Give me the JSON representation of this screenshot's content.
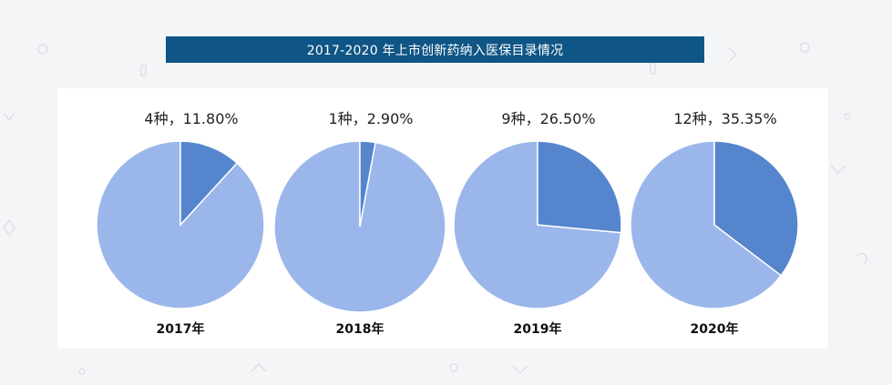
{
  "header": {
    "title": "2017-2020 年上市创新药纳入医保目录情况"
  },
  "colors": {
    "highlight": "#5585cd",
    "remainder": "#9bb6ea",
    "title_bg": "#0f5585"
  },
  "chart_data": [
    {
      "type": "pie",
      "year_label": "2017年",
      "annotation": "4种，11.80%",
      "count": 4,
      "percent": 11.8
    },
    {
      "type": "pie",
      "year_label": "2018年",
      "annotation": "1种，2.90%",
      "count": 1,
      "percent": 2.9
    },
    {
      "type": "pie",
      "year_label": "2019年",
      "annotation": "9种，26.50%",
      "count": 9,
      "percent": 26.5
    },
    {
      "type": "pie",
      "year_label": "2020年",
      "annotation": "12种，35.35%",
      "count": 12,
      "percent": 35.35
    }
  ]
}
